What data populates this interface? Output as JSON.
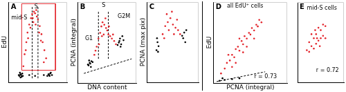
{
  "chart_data": [
    {
      "type": "scatter",
      "title": "A",
      "y_label": "EdU",
      "xlim": [
        0,
        100
      ],
      "ylim": [
        0,
        100
      ],
      "tick_labels": false,
      "grid": false,
      "series": [
        {
          "color": "#000000",
          "x": [
            18,
            20,
            22,
            19,
            21,
            23,
            17,
            20,
            24,
            68,
            70,
            72,
            69,
            71,
            74,
            66,
            60,
            45,
            35
          ],
          "values": [
            8,
            10,
            7,
            12,
            9,
            11,
            9,
            6,
            8,
            10,
            8,
            12,
            9,
            11,
            9,
            8,
            9,
            8,
            9
          ]
        },
        {
          "color": "#e3242b",
          "x": [
            25,
            27,
            30,
            32,
            35,
            38,
            40,
            43,
            45,
            48,
            50,
            53,
            56,
            58,
            61,
            64,
            33,
            37,
            42,
            46,
            52,
            55,
            29,
            60,
            47,
            41
          ],
          "values": [
            20,
            35,
            50,
            62,
            72,
            80,
            85,
            88,
            86,
            82,
            78,
            70,
            60,
            50,
            40,
            30,
            55,
            68,
            75,
            72,
            62,
            52,
            40,
            25,
            90,
            80
          ]
        },
        {
          "type": "line",
          "line_style": "solid",
          "color": "#e3242b",
          "x": [
            22,
            22,
            80,
            80,
            22
          ],
          "values": [
            15,
            98,
            98,
            15,
            15
          ]
        },
        {
          "type": "line",
          "line_style": "dashed",
          "color": "#000000",
          "x": [
            40,
            40
          ],
          "values": [
            5,
            95
          ]
        },
        {
          "type": "line",
          "line_style": "dashed",
          "color": "#000000",
          "x": [
            50,
            50
          ],
          "values": [
            5,
            95
          ]
        }
      ],
      "annotations": [
        {
          "text": "mid-S",
          "x": 4,
          "y": 80
        },
        {
          "text": "S",
          "x": 44,
          "y": 94
        }
      ]
    },
    {
      "type": "scatter",
      "title": "B",
      "x_label": "DNA content",
      "y_label": "PCNA (integral)",
      "xlim": [
        0,
        100
      ],
      "ylim": [
        0,
        100
      ],
      "tick_labels": false,
      "grid": false,
      "series": [
        {
          "color": "#000000",
          "x": [
            18,
            20,
            22,
            19,
            21,
            23,
            17,
            25,
            70,
            72,
            74,
            76,
            71,
            73,
            68,
            78
          ],
          "values": [
            22,
            25,
            20,
            28,
            24,
            27,
            23,
            26,
            50,
            55,
            48,
            58,
            52,
            45,
            47,
            53
          ]
        },
        {
          "color": "#e3242b",
          "x": [
            28,
            32,
            35,
            38,
            40,
            42,
            45,
            48,
            50,
            52,
            55,
            58,
            62,
            36,
            44,
            47,
            41,
            53,
            30,
            60,
            65
          ],
          "values": [
            35,
            45,
            55,
            62,
            70,
            75,
            72,
            68,
            65,
            60,
            58,
            55,
            52,
            48,
            60,
            80,
            58,
            70,
            40,
            60,
            48
          ]
        },
        {
          "type": "line",
          "line_style": "dashed",
          "color": "#000000",
          "x": [
            35,
            35
          ],
          "values": [
            30,
            88
          ]
        },
        {
          "type": "line",
          "line_style": "dashed",
          "color": "#000000",
          "x": [
            52,
            52
          ],
          "values": [
            30,
            88
          ]
        },
        {
          "type": "line",
          "line_style": "dashed",
          "color": "#000000",
          "x": [
            10,
            92
          ],
          "values": [
            12,
            30
          ]
        }
      ],
      "annotations": [
        {
          "text": "G1",
          "x": 12,
          "y": 55
        },
        {
          "text": "S",
          "x": 41,
          "y": 96
        },
        {
          "text": "G2M",
          "x": 68,
          "y": 82
        }
      ]
    },
    {
      "type": "scatter",
      "title": "C",
      "y_label": "PCNA (max pix)",
      "xlim": [
        0,
        100
      ],
      "ylim": [
        0,
        100
      ],
      "tick_labels": false,
      "grid": false,
      "series": [
        {
          "color": "#000000",
          "x": [
            18,
            20,
            22,
            19,
            21,
            70,
            72,
            74,
            68,
            76
          ],
          "values": [
            40,
            50,
            45,
            55,
            38,
            55,
            62,
            50,
            58,
            65
          ]
        },
        {
          "color": "#e3242b",
          "x": [
            30,
            35,
            40,
            45,
            50,
            55,
            60,
            38,
            48,
            42,
            52,
            58,
            33,
            64
          ],
          "values": [
            60,
            70,
            75,
            80,
            72,
            68,
            65,
            85,
            88,
            65,
            60,
            78,
            55,
            60
          ]
        }
      ],
      "annotations": []
    },
    {
      "type": "scatter",
      "title": "D",
      "x_label": "PCNA (integral)",
      "y_label": "EdU",
      "xlim": [
        0,
        100
      ],
      "ylim": [
        0,
        100
      ],
      "tick_labels": false,
      "grid": false,
      "series": [
        {
          "color": "#000000",
          "x": [
            8,
            15,
            25,
            35,
            12
          ],
          "values": [
            3,
            4,
            5,
            6,
            6
          ]
        },
        {
          "color": "#e3242b",
          "x": [
            10,
            15,
            18,
            22,
            25,
            28,
            30,
            33,
            35,
            38,
            40,
            42,
            45,
            48,
            50,
            52,
            55,
            58,
            60,
            20,
            35,
            45,
            55,
            62,
            30,
            40,
            65,
            25
          ],
          "values": [
            12,
            18,
            25,
            28,
            35,
            32,
            42,
            45,
            40,
            52,
            48,
            58,
            55,
            62,
            60,
            68,
            65,
            72,
            70,
            35,
            55,
            45,
            55,
            78,
            25,
            38,
            75,
            20
          ]
        },
        {
          "type": "line",
          "line_style": "dashed",
          "color": "#000000",
          "x": [
            4,
            70
          ],
          "values": [
            2,
            14
          ]
        }
      ],
      "annotations": [
        {
          "text": "all EdU⁺ cells",
          "x": 18,
          "y": 95
        },
        {
          "text": "r = 0.73",
          "x": 55,
          "y": 8
        }
      ]
    },
    {
      "type": "scatter",
      "title": "E",
      "xlim": [
        0,
        100
      ],
      "ylim": [
        0,
        100
      ],
      "tick_labels": false,
      "grid": false,
      "series": [
        {
          "color": "#e3242b",
          "x": [
            20,
            25,
            30,
            35,
            40,
            45,
            50,
            55,
            60,
            30,
            40,
            50,
            35,
            45,
            55,
            25,
            60,
            42,
            38,
            48
          ],
          "values": [
            40,
            50,
            45,
            55,
            60,
            52,
            65,
            58,
            70,
            60,
            48,
            55,
            42,
            68,
            72,
            38,
            55,
            55,
            65,
            45
          ]
        }
      ],
      "annotations": [
        {
          "text": "mid-S cells",
          "x": 20,
          "y": 92
        },
        {
          "text": "r = 0.72",
          "x": 40,
          "y": 15
        }
      ]
    }
  ]
}
